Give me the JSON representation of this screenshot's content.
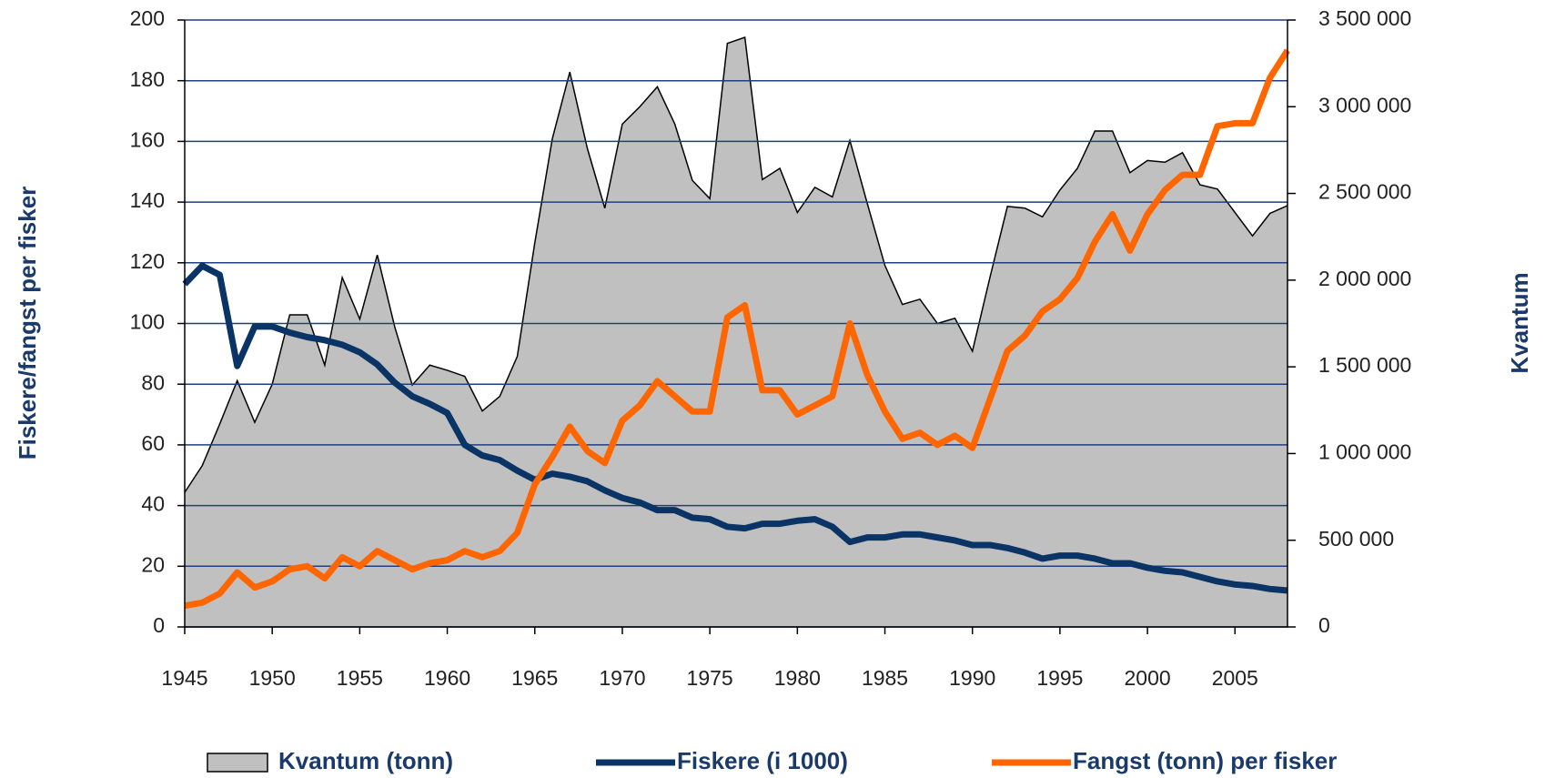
{
  "chart_data": {
    "type": "line",
    "y_label": "Fiskere/fangst per fisker",
    "y2_label": "Kvantum",
    "x": [
      1945,
      1946,
      1947,
      1948,
      1949,
      1950,
      1951,
      1952,
      1953,
      1954,
      1955,
      1956,
      1957,
      1958,
      1959,
      1960,
      1961,
      1962,
      1963,
      1964,
      1965,
      1966,
      1967,
      1968,
      1969,
      1970,
      1971,
      1972,
      1973,
      1974,
      1975,
      1976,
      1977,
      1978,
      1979,
      1980,
      1981,
      1982,
      1983,
      1984,
      1985,
      1986,
      1987,
      1988,
      1989,
      1990,
      1991,
      1992,
      1993,
      1994,
      1995,
      1996,
      1997,
      1998,
      1999,
      2000,
      2001,
      2002,
      2003,
      2004,
      2005,
      2006,
      2007,
      2008
    ],
    "xlim": [
      1945,
      2008
    ],
    "xticks": [
      1945,
      1950,
      1955,
      1960,
      1965,
      1970,
      1975,
      1980,
      1985,
      1990,
      1995,
      2000,
      2005
    ],
    "ylim": [
      0,
      200
    ],
    "yticks": [
      0,
      20,
      40,
      60,
      80,
      100,
      120,
      140,
      160,
      180,
      200
    ],
    "y2lim": [
      0,
      3500000
    ],
    "y2ticks": [
      {
        "value": 0,
        "label": "0"
      },
      {
        "value": 500000,
        "label": "500 000"
      },
      {
        "value": 1000000,
        "label": "1 000 000"
      },
      {
        "value": 1500000,
        "label": "1 500 000"
      },
      {
        "value": 2000000,
        "label": "2 000 000"
      },
      {
        "value": 2500000,
        "label": "2 500 000"
      },
      {
        "value": 3000000,
        "label": "3 000 000"
      },
      {
        "value": 3500000,
        "label": "3 500 000"
      }
    ],
    "grid": true,
    "legend": "bottom",
    "series": [
      {
        "name": "Kvantum (tonn)",
        "type": "area",
        "axis": "y2",
        "color": "#c0c0c0",
        "values": [
          776000,
          930000,
          1170000,
          1420000,
          1180000,
          1400000,
          1800000,
          1800000,
          1510000,
          2015000,
          1775000,
          2145000,
          1730000,
          1395000,
          1510000,
          1480000,
          1445000,
          1245000,
          1330000,
          1560000,
          2215000,
          2815000,
          3200000,
          2760000,
          2415000,
          2900000,
          3000000,
          3115000,
          2900000,
          2575000,
          2470000,
          3365000,
          3400000,
          2580000,
          2645000,
          2390000,
          2535000,
          2480000,
          2805000,
          2440000,
          2085000,
          1860000,
          1890000,
          1750000,
          1780000,
          1590000,
          2015000,
          2425000,
          2415000,
          2365000,
          2520000,
          2645000,
          2860000,
          2860000,
          2620000,
          2690000,
          2680000,
          2735000,
          2550000,
          2525000,
          2390000,
          2255000,
          2385000,
          2430000
        ]
      },
      {
        "name": "Fiskere (i 1000)",
        "type": "line",
        "color": "#0a3366",
        "values": [
          113,
          119,
          116,
          86,
          99,
          99,
          97,
          95.5,
          94.5,
          93,
          90.5,
          86.5,
          80.5,
          76,
          73.5,
          70.5,
          60,
          56.5,
          55,
          51.5,
          48.5,
          50.5,
          49.5,
          48,
          45,
          42.5,
          41,
          38.5,
          38.5,
          36,
          35.5,
          33,
          32.5,
          34,
          34,
          35,
          35.5,
          33,
          28,
          29.5,
          29.5,
          30.5,
          30.5,
          29.5,
          28.5,
          27,
          27,
          26,
          24.5,
          22.5,
          23.5,
          23.5,
          22.5,
          21,
          21,
          19.5,
          18.5,
          18,
          16.5,
          15,
          14,
          13.5,
          12.5,
          12
        ]
      },
      {
        "name": "Fangst (tonn) per fisker",
        "type": "line",
        "color": "#ff6600",
        "values": [
          7,
          8,
          11,
          18,
          13,
          15,
          19,
          20,
          16,
          23,
          20,
          25,
          22,
          19,
          21,
          22,
          25,
          23,
          25,
          31,
          47,
          56,
          66,
          58,
          54,
          68,
          73,
          81,
          76,
          71,
          71,
          102,
          106,
          78,
          78,
          70,
          73,
          76,
          100,
          83,
          71,
          62,
          64,
          60,
          63,
          59,
          75,
          91,
          96,
          104,
          108,
          115,
          127,
          136,
          124,
          136,
          144,
          149,
          149,
          165,
          166,
          166,
          181,
          190
        ]
      }
    ]
  }
}
